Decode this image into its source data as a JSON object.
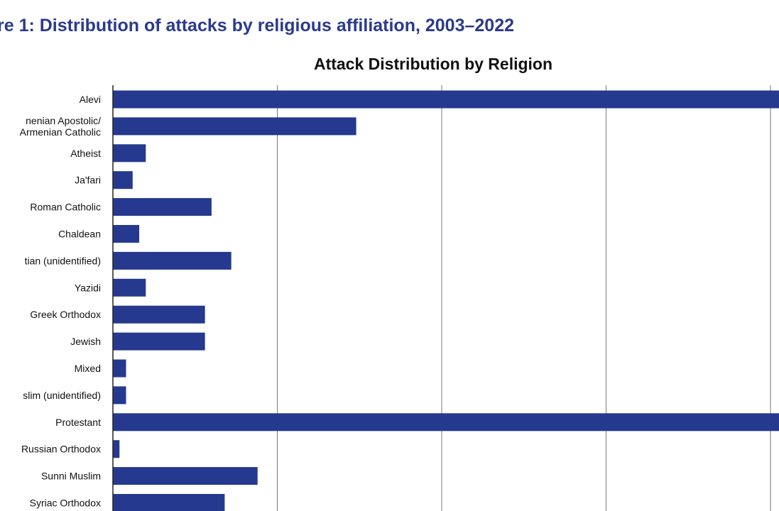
{
  "figure": {
    "caption": "re 1: Distribution of attacks by religious affiliation, 2003–2022"
  },
  "chart_data": {
    "type": "bar",
    "orientation": "horizontal",
    "title": "Attack Distribution by Religion",
    "xlabel": "",
    "ylabel": "",
    "xlim": [
      0,
      20
    ],
    "grid": "vertical",
    "bar_color": "#25398f",
    "categories": [
      [
        "Alevi"
      ],
      [
        "nenian Apostolic/",
        "Armenian Catholic"
      ],
      [
        "Atheist"
      ],
      [
        "Ja'fari"
      ],
      [
        "Roman Catholic"
      ],
      [
        "Chaldean"
      ],
      [
        "tian (unidentified)"
      ],
      [
        "Yazidi"
      ],
      [
        "Greek Orthodox"
      ],
      [
        "Jewish"
      ],
      [
        "Mixed"
      ],
      [
        "slim (unidentified)"
      ],
      [
        "Protestant"
      ],
      [
        "Russian Orthodox"
      ],
      [
        "Sunni Muslim"
      ],
      [
        "Syriac Orthodox"
      ]
    ],
    "values": [
      21,
      7.4,
      1,
      0.6,
      3,
      0.8,
      3.6,
      1,
      2.8,
      2.8,
      0.4,
      0.4,
      21,
      0.2,
      4.4,
      3.4
    ]
  }
}
